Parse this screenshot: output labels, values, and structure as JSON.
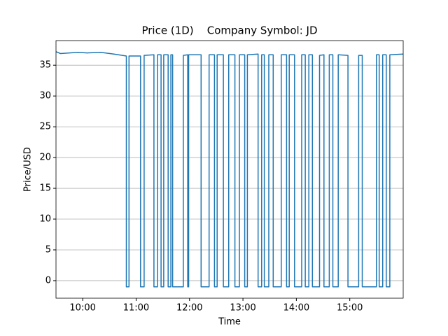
{
  "chart_data": {
    "type": "line",
    "title": "Price (1D)    Company Symbol: JD",
    "x_label": "Time",
    "y_label": "Price/USD",
    "x": [
      "09:30",
      "09:35",
      "09:45",
      "09:55",
      "10:05",
      "10:20",
      "10:35",
      "10:49",
      "10:49",
      "10:52",
      "10:52",
      "11:05",
      "11:05",
      "11:09",
      "11:09",
      "11:20",
      "11:20",
      "11:24",
      "11:24",
      "11:28",
      "11:28",
      "11:31",
      "11:31",
      "11:36",
      "11:36",
      "11:39",
      "11:39",
      "11:41",
      "11:41",
      "11:53",
      "11:53",
      "11:58",
      "11:58",
      "11:59",
      "11:59",
      "12:13",
      "12:13",
      "12:22",
      "12:22",
      "12:28",
      "12:28",
      "12:31",
      "12:31",
      "12:38",
      "12:38",
      "12:44",
      "12:44",
      "12:51",
      "12:51",
      "12:56",
      "12:56",
      "13:02",
      "13:02",
      "13:05",
      "13:05",
      "13:17",
      "13:17",
      "13:21",
      "13:21",
      "13:24",
      "13:24",
      "13:29",
      "13:29",
      "13:34",
      "13:34",
      "13:43",
      "13:43",
      "13:49",
      "13:49",
      "13:52",
      "13:52",
      "13:58",
      "13:58",
      "14:06",
      "14:06",
      "14:10",
      "14:10",
      "14:14",
      "14:14",
      "14:18",
      "14:18",
      "14:26",
      "14:26",
      "14:31",
      "14:31",
      "14:37",
      "14:37",
      "14:41",
      "14:41",
      "14:47",
      "14:47",
      "14:58",
      "14:58",
      "15:10",
      "15:10",
      "15:14",
      "15:14",
      "15:30",
      "15:30",
      "15:33",
      "15:33",
      "15:37",
      "15:37",
      "15:41",
      "15:41",
      "15:45",
      "15:45",
      "16:00"
    ],
    "series": [
      {
        "name": "JD",
        "color": "#1f77b4",
        "values": [
          37.2,
          36.9,
          37.0,
          37.1,
          37.0,
          37.1,
          36.8,
          36.5,
          -1,
          -1,
          36.5,
          36.5,
          -1,
          -1,
          36.6,
          36.7,
          -1,
          -1,
          36.7,
          36.7,
          -1,
          -1,
          36.7,
          36.7,
          -1,
          -1,
          36.7,
          36.7,
          -1,
          -1,
          36.6,
          36.7,
          -1,
          -1,
          36.7,
          36.7,
          -1,
          -1,
          36.7,
          36.7,
          -1,
          -1,
          36.7,
          36.7,
          -1,
          -1,
          36.7,
          36.7,
          -1,
          -1,
          36.7,
          36.7,
          -1,
          -1,
          36.7,
          36.8,
          -1,
          -1,
          36.7,
          36.7,
          -1,
          -1,
          36.7,
          36.7,
          -1,
          -1,
          36.7,
          36.7,
          -1,
          -1,
          36.7,
          36.7,
          -1,
          -1,
          36.7,
          36.7,
          -1,
          -1,
          36.7,
          36.7,
          -1,
          -1,
          36.6,
          36.7,
          -1,
          -1,
          36.7,
          36.7,
          -1,
          -1,
          36.7,
          36.6,
          -1,
          -1,
          36.6,
          36.6,
          -1,
          -1,
          36.7,
          36.7,
          -1,
          -1,
          36.7,
          36.7,
          -1,
          -1,
          36.7,
          36.8
        ]
      }
    ],
    "xlim": [
      "09:30",
      "16:00"
    ],
    "xticks": [
      "10:00",
      "11:00",
      "12:00",
      "13:00",
      "14:00",
      "15:00"
    ],
    "ylim": [
      -2.85,
      39
    ],
    "yticks": [
      0,
      5,
      10,
      15,
      20,
      25,
      30,
      35
    ],
    "grid": true
  }
}
